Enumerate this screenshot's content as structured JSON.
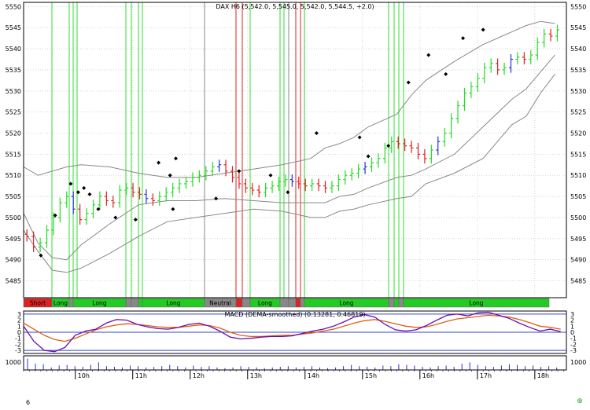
{
  "chart_data": [
    {
      "type": "line",
      "title": "DAX H6 (5,542.0, 5,545.0, 5,542.0, 5,544.5, +2.0)",
      "subtype": "candlestick-ohlc-with-bollinger-bands",
      "ylim": [
        5481,
        5551
      ],
      "y_ticks": [
        5485,
        5490,
        5495,
        5500,
        5505,
        5510,
        5515,
        5520,
        5525,
        5530,
        5535,
        5540,
        5545,
        5550
      ],
      "x_ticks": [
        "10h",
        "11h",
        "12h",
        "13h",
        "14h",
        "15h",
        "16h",
        "17h",
        "18h"
      ],
      "x_tick_positions": [
        9.9,
        10.9,
        11.9,
        12.9,
        13.9,
        14.9,
        15.9,
        16.9,
        17.9
      ],
      "xlim": [
        9.0,
        18.45
      ],
      "grid": true,
      "series": [
        {
          "values": [
            5495.5,
            5493.0,
            5494.0,
            5497.0,
            5500.0,
            5503.5,
            5505.0,
            5502.0,
            5499.5,
            5501.0,
            5503.0,
            5505.0,
            5504.0,
            5503.5,
            5506.5,
            5507.0,
            5506.0,
            5505.5,
            5504.5,
            5504.0,
            5505.0,
            5506.0,
            5507.0,
            5508.0,
            5508.5,
            5509.5,
            5510.0,
            5511.0,
            5512.0,
            5512.5,
            5511.0,
            5509.5,
            5508.0,
            5507.0,
            5506.5,
            5506.0,
            5507.0,
            5507.5,
            5508.5,
            5509.0,
            5508.5,
            5508.0,
            5507.5,
            5508.0,
            5507.5,
            5507.0,
            5507.5,
            5509.0,
            5510.0,
            5510.5,
            5511.5,
            5512.0,
            5513.0,
            5514.0,
            5516.5,
            5518.0,
            5517.5,
            5517.0,
            5516.5,
            5515.0,
            5514.0,
            5516.0,
            5518.0,
            5520.0,
            5523.5,
            5526.5,
            5529.5,
            5531.0,
            5533.0,
            5535.5,
            5536.5,
            5535.0,
            5535.5,
            5537.5,
            5538.0,
            5537.5,
            5538.5,
            5541.5,
            5543.5,
            5543.0,
            5544.5
          ]
        }
      ],
      "bollinger": {
        "upper": [
          5512.0,
          5510.0,
          5511.0,
          5512.0,
          5512.5,
          5512.0,
          5510.5,
          5509.5,
          5509.5,
          5510.5,
          5511.5,
          5512.5,
          5514.0,
          5516.5,
          5517.5,
          5519.0,
          5521.5,
          5524.5,
          5529.0,
          5532.5,
          5537.0,
          5541.0,
          5544.0,
          5545.5,
          5546.5,
          5546.0
        ],
        "lower": [
          5501.0,
          5494.0,
          5490.5,
          5490.0,
          5493.5,
          5498.5,
          5503.0,
          5504.0,
          5504.0,
          5504.5,
          5504.0,
          5503.5,
          5503.5,
          5503.5,
          5505.0,
          5505.5,
          5507.0,
          5509.5,
          5510.0,
          5511.5,
          5515.0,
          5521.5,
          5528.0,
          5530.5,
          5534.5,
          5538.5
        ],
        "outer_lower": [
          5497.0,
          5492.0,
          5487.5,
          5487.0,
          5488.0,
          5491.5,
          5495.5,
          5499.0,
          5500.0,
          5501.0,
          5502.0,
          5501.5,
          5500.0,
          5500.0,
          5501.5,
          5502.0,
          5503.0,
          5504.5,
          5505.0,
          5508.0,
          5510.5,
          5514.0,
          5522.0,
          5524.0,
          5529.5,
          5534.0
        ],
        "x": [
          9.0,
          9.25,
          9.5,
          9.75,
          10.0,
          10.5,
          11.0,
          11.5,
          12.0,
          12.5,
          13.0,
          13.5,
          14.0,
          14.25,
          14.5,
          14.75,
          15.0,
          15.5,
          15.75,
          16.0,
          16.5,
          17.0,
          17.5,
          17.75,
          18.0,
          18.25
        ]
      },
      "markers_y": [
        5506.0,
        5508.0,
        5500.5,
        5491.0,
        5507.0,
        5505.5,
        5502.0,
        5500.0,
        5499.5,
        5513.0,
        5514.0,
        5510.0,
        5502.0,
        5504.5,
        5511.0,
        5510.0,
        5506.0,
        5520.0,
        5519.0,
        5514.5,
        5517.0,
        5532.0,
        5538.5,
        5534.0,
        5542.5,
        5544.5
      ],
      "markers_x": [
        9.95,
        9.82,
        9.55,
        9.3,
        10.05,
        10.15,
        10.3,
        10.6,
        10.95,
        11.35,
        11.65,
        11.55,
        11.6,
        12.35,
        12.75,
        13.3,
        13.6,
        14.1,
        14.85,
        15.0,
        15.35,
        15.7,
        16.05,
        16.35,
        16.65,
        17.0
      ],
      "regime_labels": [
        "Short",
        "Long",
        "Long",
        "Long",
        "Neutral",
        "Long",
        "Long",
        "Long"
      ]
    },
    {
      "type": "line",
      "title": "MACD (DEMA-smoothed) (0.13281, 0.46819)",
      "ylim": [
        -3.5,
        3.5
      ],
      "y_ticks": [
        -3,
        -2,
        -1,
        0,
        1,
        2,
        3
      ],
      "series": [
        {
          "values": [
            1.0,
            -1.5,
            -3.0,
            -3.2,
            -2.5,
            -0.5,
            0.2,
            0.5,
            1.5,
            2.1,
            2.0,
            1.3,
            0.9,
            0.6,
            0.5,
            0.8,
            1.3,
            1.5,
            1.0,
            0.2,
            -0.8,
            -1.1,
            -1.0,
            -0.8,
            -0.7,
            -0.7,
            -0.6,
            -0.2,
            0.2,
            0.5,
            1.0,
            1.7,
            2.5,
            2.9,
            2.5,
            1.3,
            0.4,
            0.2,
            0.4,
            1.1,
            2.0,
            2.8,
            3.0,
            2.7,
            3.2,
            3.3,
            2.8,
            2.3,
            1.5,
            0.8,
            0.2,
            0.5,
            0.1
          ]
        },
        {
          "values": [
            1.5,
            0.5,
            -0.5,
            -1.2,
            -1.5,
            -1.0,
            -0.3,
            0.4,
            0.9,
            1.2,
            1.4,
            1.3,
            1.1,
            0.9,
            0.8,
            0.8,
            1.0,
            1.2,
            1.1,
            0.7,
            0.0,
            -0.5,
            -0.7,
            -0.7,
            -0.6,
            -0.5,
            -0.5,
            -0.3,
            -0.1,
            0.2,
            0.5,
            1.0,
            1.5,
            1.9,
            2.1,
            1.8,
            1.4,
            1.0,
            0.8,
            0.9,
            1.3,
            1.8,
            2.2,
            2.4,
            2.6,
            2.8,
            2.7,
            2.5,
            2.1,
            1.6,
            1.0,
            0.8,
            0.5
          ]
        }
      ]
    },
    {
      "type": "bar",
      "title": "",
      "y_ticks": [
        1000
      ],
      "values": [
        900,
        500,
        450,
        200,
        350,
        400,
        300,
        250,
        400,
        600,
        300,
        250,
        200,
        350,
        300,
        200,
        250,
        300,
        400,
        300,
        200,
        350,
        250,
        300,
        200,
        150,
        200,
        300,
        250,
        200,
        150,
        200,
        250,
        300,
        200,
        250,
        300,
        200,
        150,
        200,
        300,
        400,
        300,
        250,
        200,
        350,
        300,
        450,
        400,
        350,
        250,
        200,
        300,
        350,
        250,
        500,
        600,
        400,
        300,
        250,
        350,
        450,
        400,
        300,
        350,
        250,
        300,
        200
      ]
    }
  ],
  "bottom_left_label": "6",
  "colors": {
    "up": "#22dd22",
    "down": "#e02020",
    "neutral": "#2233dd",
    "band": "#888888",
    "macd": "#6a0dad",
    "signal": "#e06010",
    "volume": "#2233dd",
    "regime_long": "#22cc22",
    "regime_short": "#dd2222",
    "regime_neutral": "#888888",
    "grid": "#cccccc",
    "line_green": "#33dd33",
    "line_red": "#dd2222",
    "line_grey": "#888888"
  }
}
